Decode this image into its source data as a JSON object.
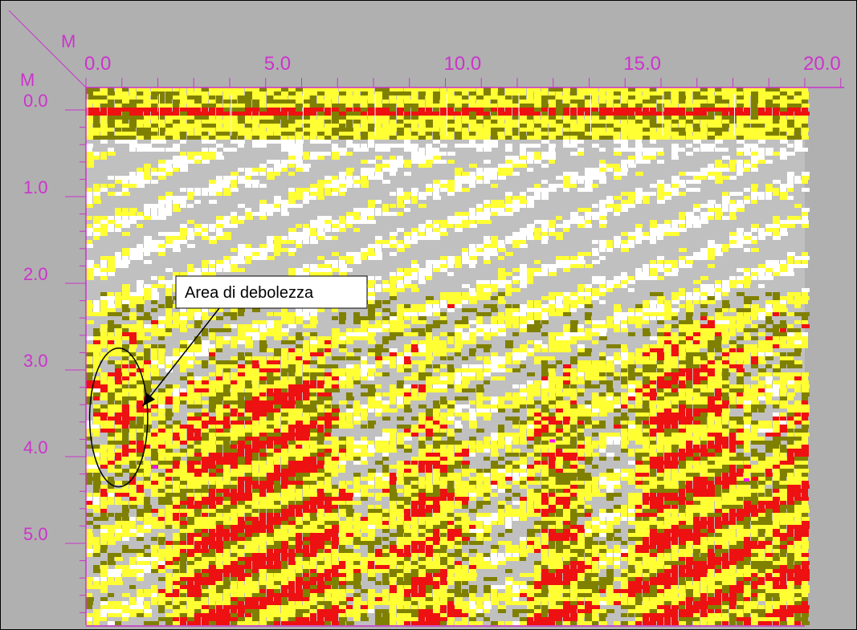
{
  "chart_data": {
    "type": "heatmap",
    "title": "",
    "x_unit": "M",
    "y_unit": "M",
    "xlim": [
      0.0,
      20.0
    ],
    "ylim": [
      0.0,
      5.9
    ],
    "x_ticks": [
      "0.0",
      "5.0",
      "10.0",
      "15.0",
      "20.0"
    ],
    "y_ticks": [
      "0.0",
      "1.0",
      "2.0",
      "3.0",
      "4.0",
      "5.0"
    ],
    "palette": {
      "background": "#b0b0b0",
      "white": "#ffffff",
      "gray": "#c0c0c0",
      "yellow": "#ffff33",
      "olive": "#808000",
      "red": "#ee1111",
      "magenta": "#ff00ff",
      "axis": "#cc33cc"
    },
    "weak_zone": {
      "center_x": 1.0,
      "center_y": 3.4,
      "radius_x": 0.85,
      "radius_y": 0.8
    },
    "annotations": [
      {
        "text": "Area di debolezza",
        "arrow_to_x": 1.4,
        "arrow_to_y": 3.25
      }
    ]
  }
}
